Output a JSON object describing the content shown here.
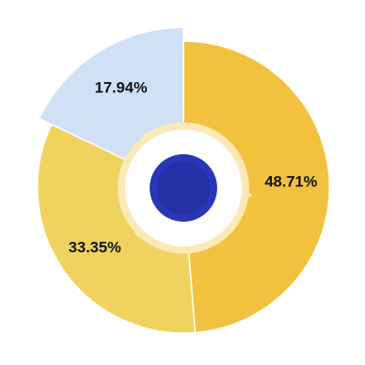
{
  "chart_data": {
    "type": "pie",
    "values": [
      48.71,
      33.35,
      17.94
    ],
    "value_labels": [
      "48.71%",
      "33.35%",
      "17.94%"
    ],
    "colors": [
      "#f2c23f",
      "#f0d35f",
      "#cfe0f7"
    ]
  }
}
